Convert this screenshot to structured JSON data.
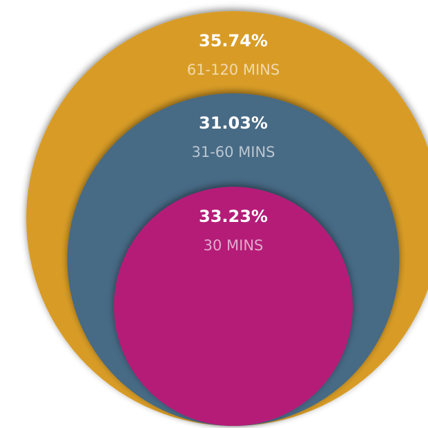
{
  "chart_data": {
    "type": "nested_circle",
    "categories": [
      "30 MINS",
      "31-60 MINS",
      "61-120 MINS"
    ],
    "values": [
      33.23,
      31.03,
      35.74
    ],
    "value_labels": [
      "33.23%",
      "31.03%",
      "35.74%"
    ],
    "colors": [
      "#b51f78",
      "#466a85",
      "#d89c27"
    ]
  }
}
